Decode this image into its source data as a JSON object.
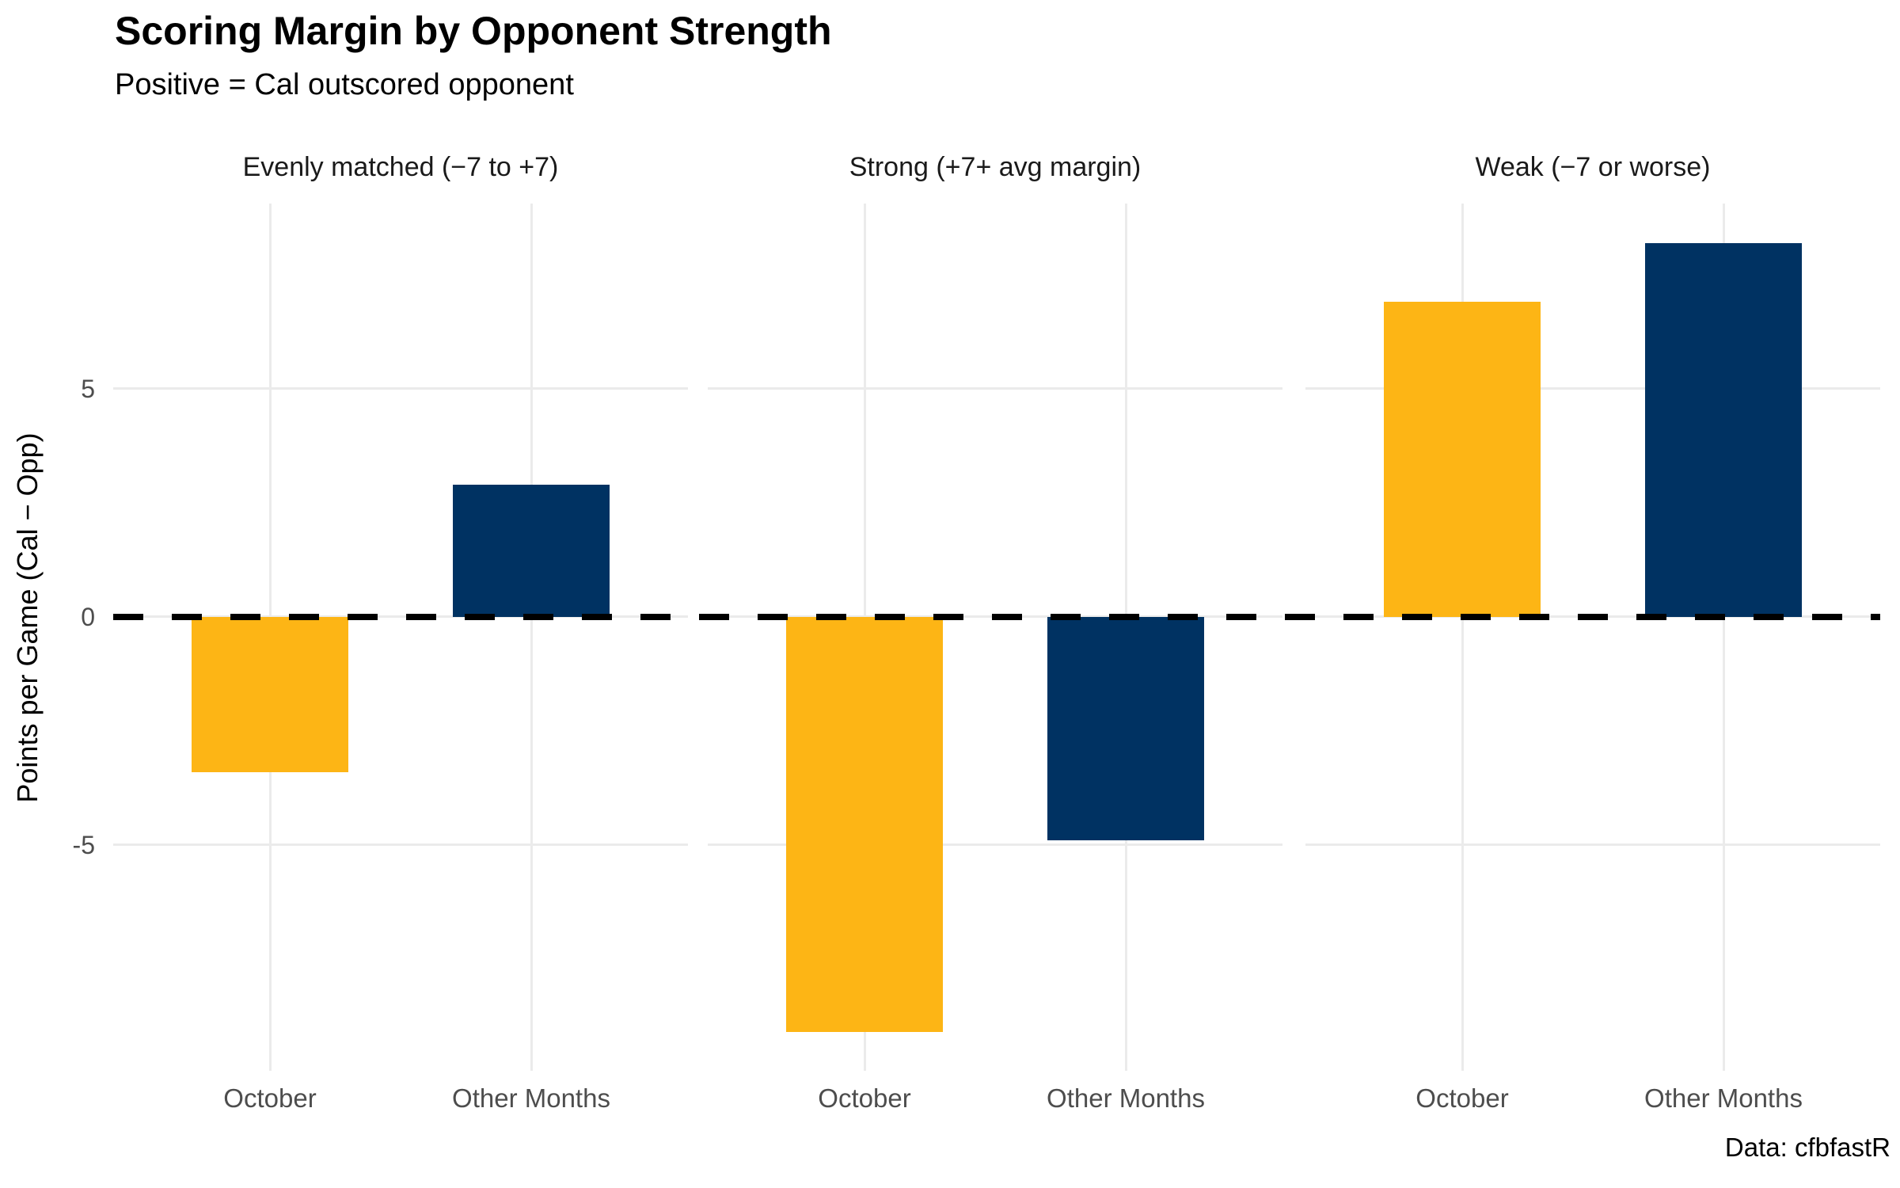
{
  "title": "Scoring Margin by Opponent Strength",
  "subtitle": "Positive = Cal outscored opponent",
  "caption": "Data: cfbfastR",
  "colors": {
    "october_bar": "#FDB515",
    "other_months_bar": "#003262",
    "gridline": "#EBEBEB",
    "axis_text": "#4D4D4D",
    "zero_line": "#000000",
    "background": "#FFFFFF"
  },
  "chart_data": {
    "type": "bar",
    "title": "Scoring Margin by Opponent Strength",
    "subtitle": "Positive = Cal outscored opponent",
    "caption": "Data: cfbfastR",
    "ylabel": "Points per Game (Cal − Opp)",
    "xlabel": "",
    "categories": [
      "October",
      "Other Months"
    ],
    "category_colors": [
      "#FDB515",
      "#003262"
    ],
    "facets": [
      {
        "label": "Evenly matched (−7 to +7)",
        "values": [
          -3.4,
          2.9
        ]
      },
      {
        "label": "Strong (+7+ avg margin)",
        "values": [
          -9.1,
          -4.9
        ]
      },
      {
        "label": "Weak (−7 or worse)",
        "values": [
          6.9,
          8.2
        ]
      }
    ],
    "yticks": [
      5,
      0,
      -5
    ],
    "ytick_labels": [
      "5",
      "0",
      "-5"
    ],
    "ylim": [
      -9.95,
      9.06
    ],
    "zero_line": {
      "y": 0,
      "style": "dashed",
      "color": "#000000"
    },
    "grid": true,
    "legend": "none"
  }
}
